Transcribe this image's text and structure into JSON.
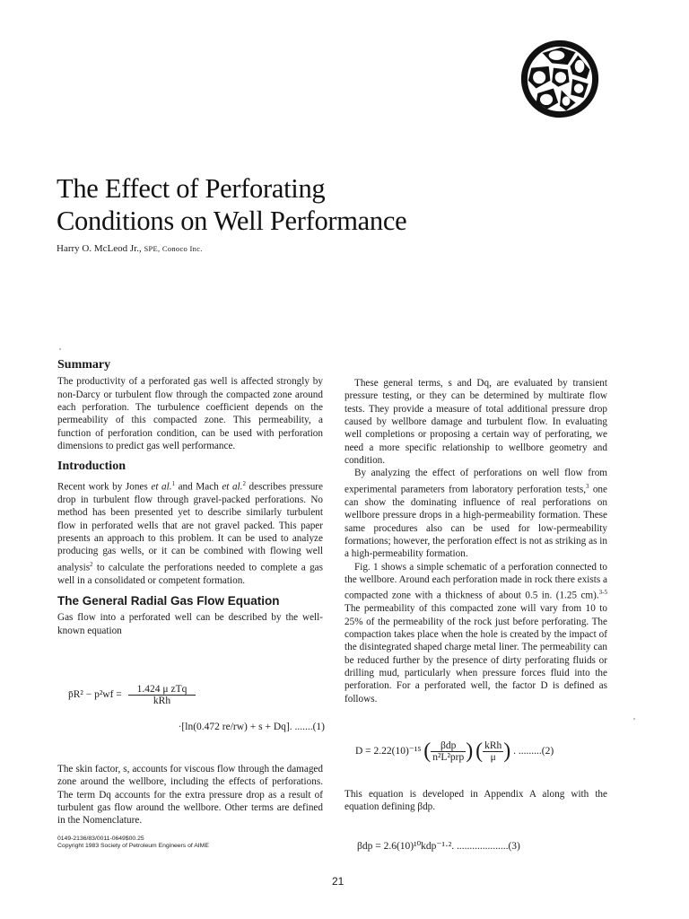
{
  "title_line1": "The Effect of Perforating",
  "title_line2": "Conditions on Well Performance",
  "author_name": "Harry O. McLeod Jr.,",
  "author_affiliation": "SPE, Conoco Inc.",
  "summary_heading": "Summary",
  "summary_text": "The productivity of a perforated gas well is affected strongly by non-Darcy or turbulent flow through the compacted zone around each perforation. The turbulence coefficient depends on the permeability of this compacted zone. This permeability, a function of perforation condition, can be used with perforation dimensions to predict gas well performance.",
  "intro_heading": "Introduction",
  "intro": {
    "t1": "Recent work by Jones ",
    "et1": "et al.",
    "s1": "1",
    "t2": " and Mach ",
    "et2": "et al.",
    "s2": "2",
    "t3": " describes pressure drop in turbulent flow through gravel-packed perforations. No method has been presented yet to describe similarly turbulent flow in perforated wells that are not gravel packed. This paper presents an approach to this problem. It can be used to analyze producing gas wells, or it can be combined with flowing well analysis",
    "s3": "2",
    "t4": " to calculate the perforations needed to complete a gas well in a consolidated or competent formation."
  },
  "radial_heading": "The General Radial Gas Flow Equation",
  "radial_text": "Gas flow into a perforated well can be described by the well-known equation",
  "eq1": {
    "lhs": "p̄R² − p²wf =",
    "num": "1.424 μ zTq",
    "den": "kRh",
    "line2": "·[ln(0.472 re/rw) + s + Dq]. .......(1)"
  },
  "skin_text": "The skin factor, s, accounts for viscous flow through the damaged zone around the wellbore, including the effects of perforations. The term Dq accounts for the extra pressure drop as a result of turbulent gas flow around the wellbore. Other terms are defined in the Nomenclature.",
  "footnote_line1": "0149-2136/83/0011-0649$00.25",
  "footnote_line2": "Copyright 1983 Society of Petroleum Engineers of AIME",
  "right_p1": "These general terms, s and Dq, are evaluated by transient pressure testing, or they can be determined by multirate flow tests. They provide a measure of total additional pressure drop caused by wellbore damage and turbulent flow. In evaluating well completions or proposing a certain way of perforating, we need a more specific relationship to wellbore geometry and condition.",
  "right_p2a": "By analyzing the effect of perforations on well flow from experimental parameters from laboratory perforation tests,",
  "right_p2s": "3",
  "right_p2b": " one can show the dominating influence of real perforations on wellbore pressure drops in a high-permeability formation. These same procedures also can be used for low-permeability formations; however, the perforation effect is not as striking as in a high-permeability formation.",
  "right_p3a": "Fig. 1 shows a simple schematic of a perforation connected to the wellbore. Around each perforation made in rock there exists a compacted zone with a thickness of about 0.5 in. (1.25 cm).",
  "right_p3s": "3-5",
  "right_p3b": " The permeability of this compacted zone will vary from 10 to 25% of the permeability of the rock just before perforating. The compaction takes place when the hole is created by the impact of the disintegrated shaped charge metal liner. The permeability can be reduced further by the presence of dirty perforating fluids or drilling mud, particularly when pressure forces fluid into the perforation. For a perforated well, the factor D is defined as follows.",
  "eq2": {
    "lhs": "D = 2.22(10)⁻¹⁵",
    "num1": "βdp",
    "den1": "n²L²prp",
    "num2": "kRh",
    "den2": "μ",
    "tail": ". .........(2)"
  },
  "eq2_text": "This equation is developed in Appendix A along with the equation defining βdp.",
  "eq3": "βdp = 2.6(10)¹⁰kdp⁻¹·². ....................(3)",
  "page_number": "21"
}
